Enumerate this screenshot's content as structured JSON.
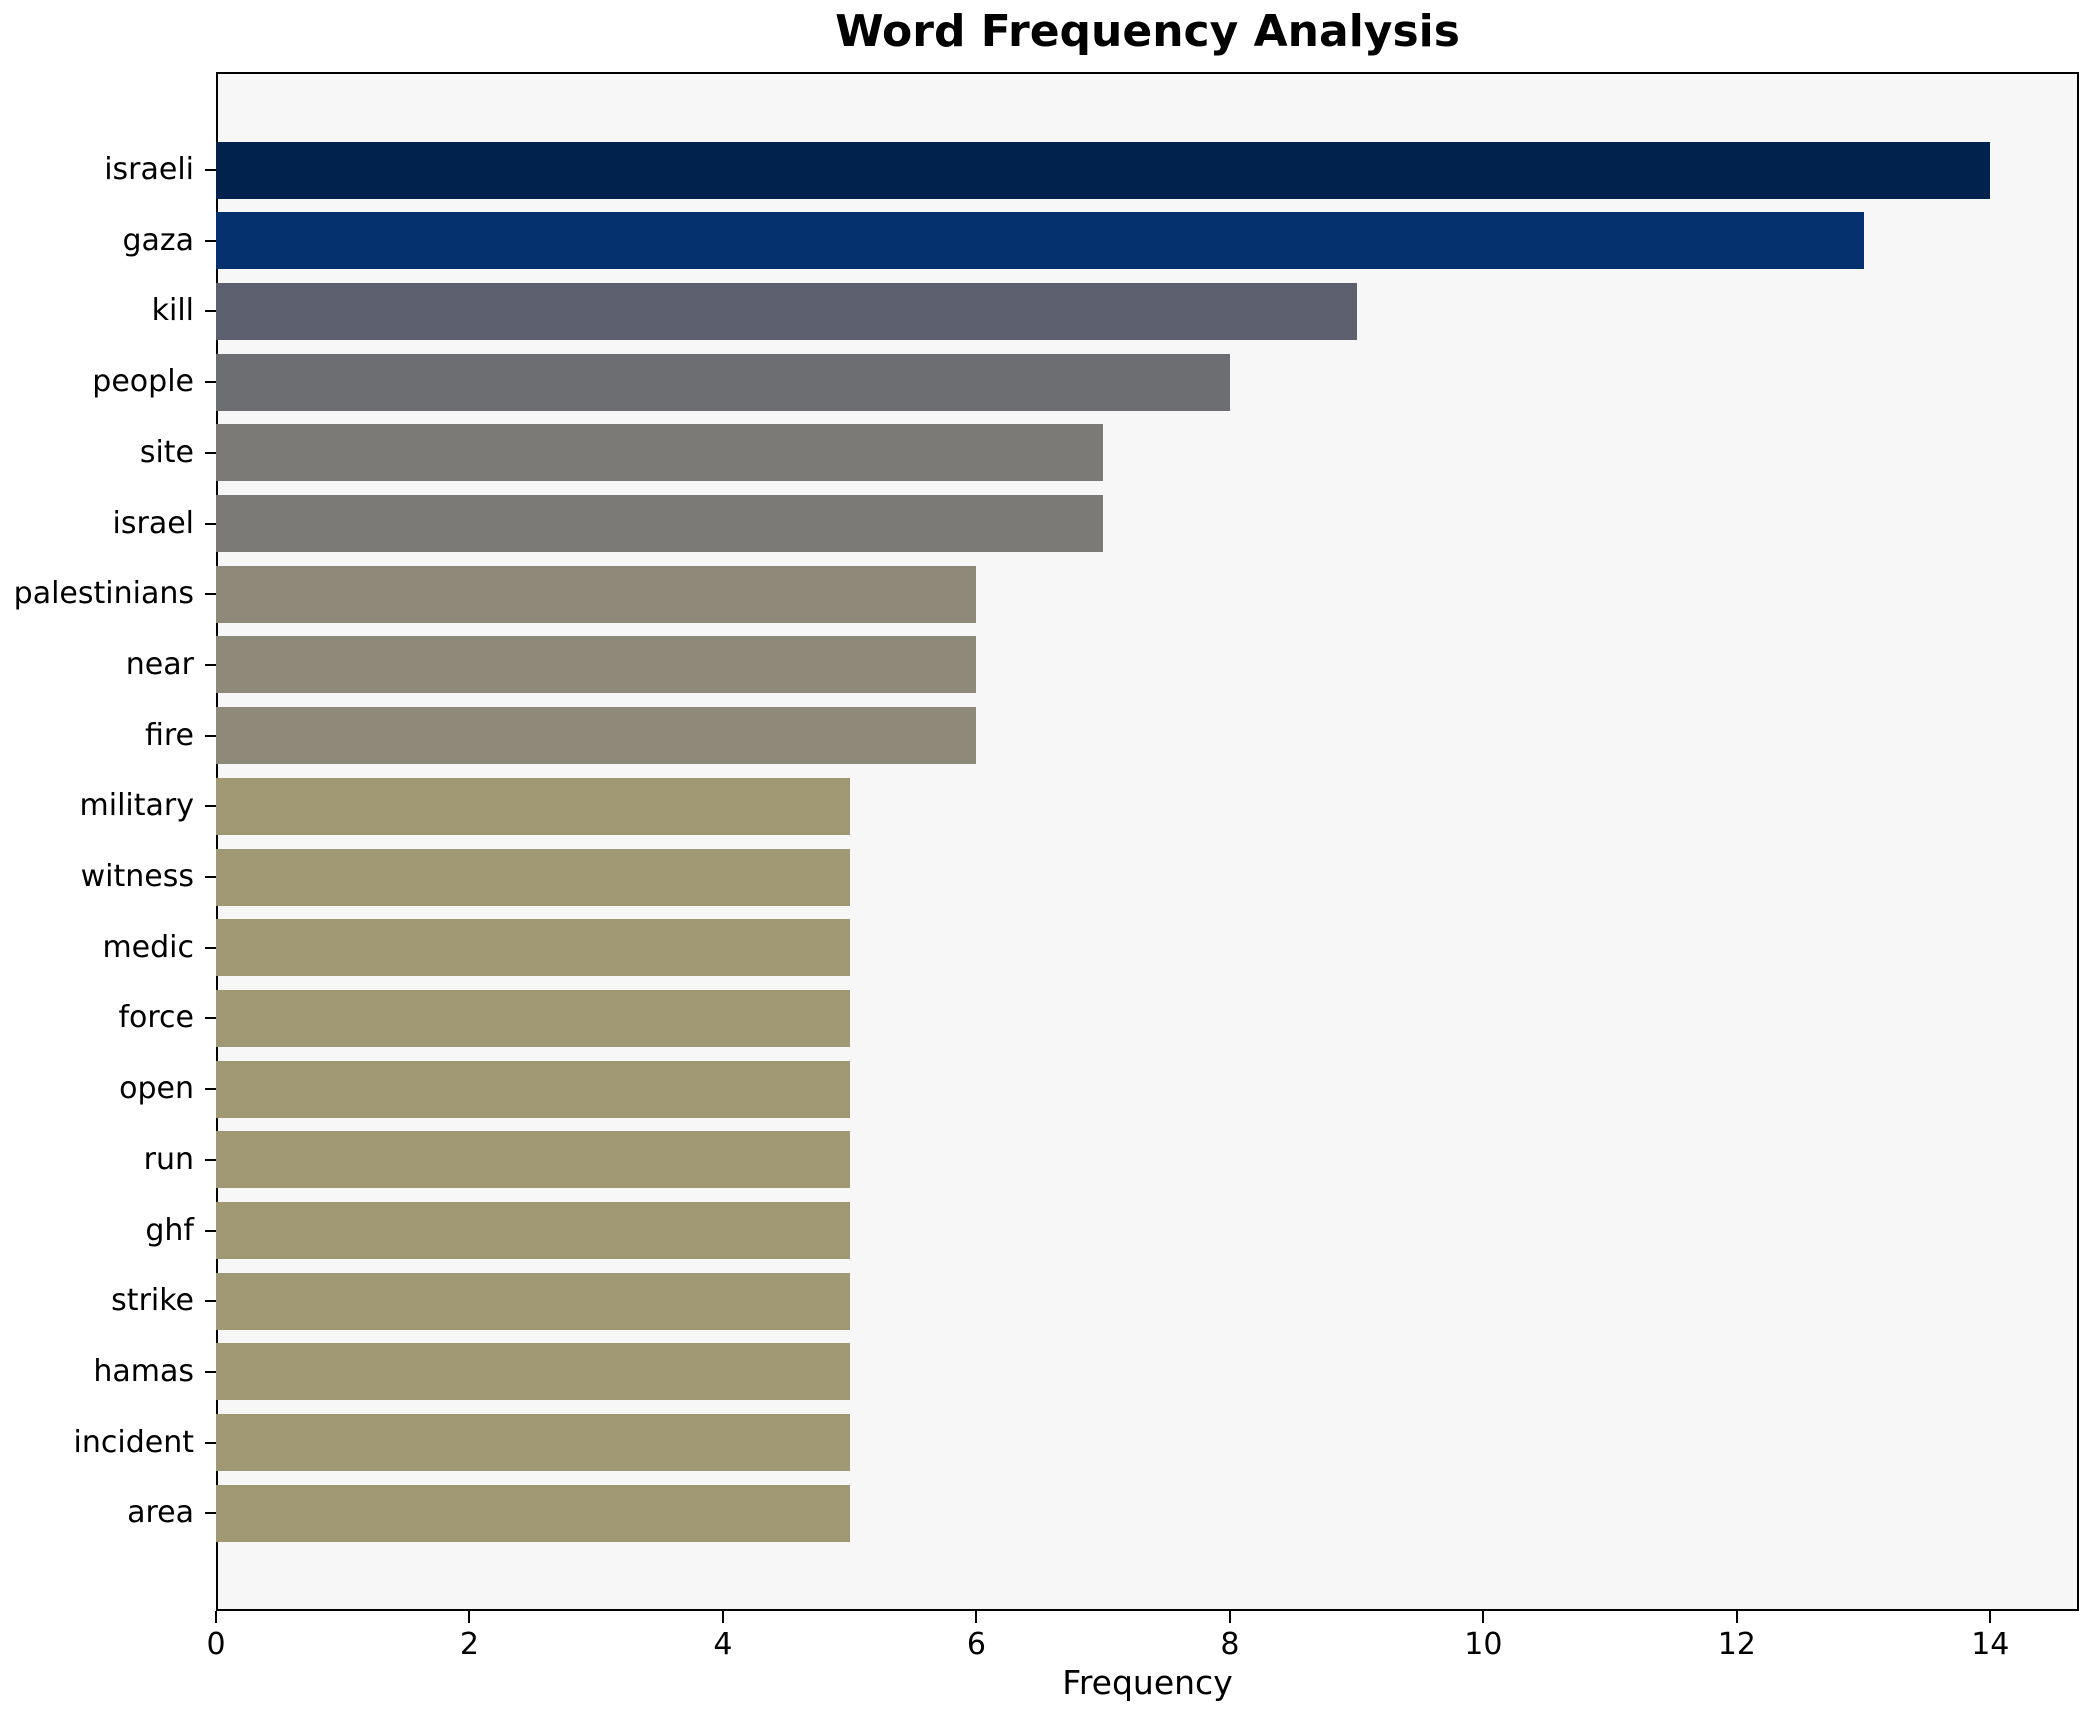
{
  "figure": {
    "title": "Word Frequency Analysis",
    "xlabel": "Frequency",
    "background": "#ffffff",
    "plot_background": "#f7f7f7",
    "spine_color": "#000000"
  },
  "chart_data": {
    "type": "bar",
    "orientation": "horizontal",
    "title": "Word Frequency Analysis",
    "xlabel": "Frequency",
    "ylabel": "",
    "grid": false,
    "legend": null,
    "xlim": [
      0,
      14.7
    ],
    "xticks": [
      0,
      2,
      4,
      6,
      8,
      10,
      12,
      14
    ],
    "categories": [
      "israeli",
      "gaza",
      "kill",
      "people",
      "site",
      "israel",
      "palestinians",
      "near",
      "fire",
      "military",
      "witness",
      "medic",
      "force",
      "open",
      "run",
      "ghf",
      "strike",
      "hamas",
      "incident",
      "area"
    ],
    "values": [
      14,
      13,
      9,
      8,
      7,
      7,
      6,
      6,
      6,
      5,
      5,
      5,
      5,
      5,
      5,
      5,
      5,
      5,
      5,
      5
    ],
    "bar_colors": [
      "#02224e",
      "#04316e",
      "#5c606e",
      "#6d6e71",
      "#7b7a76",
      "#7b7a76",
      "#8e8979",
      "#8e8979",
      "#8e8979",
      "#a09873",
      "#a09873",
      "#a09873",
      "#a09873",
      "#a09873",
      "#a09873",
      "#a09873",
      "#a09873",
      "#a09873",
      "#a09873",
      "#a09873"
    ]
  }
}
